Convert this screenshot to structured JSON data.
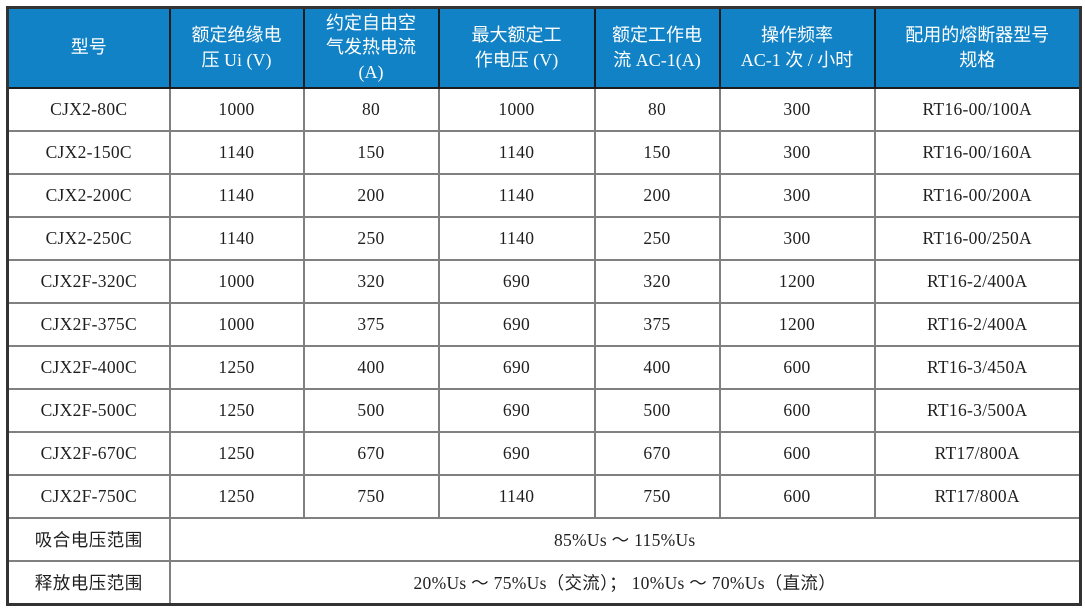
{
  "theme": {
    "header_bg": "#1182c5",
    "header_text": "#ffffff",
    "body_text": "#1f1f1f",
    "border_inner": "#808080",
    "border_outer": "#333333",
    "header_divider": "#1c1c1c",
    "body_bg": "#ffffff"
  },
  "table": {
    "columns": [
      {
        "key": "model",
        "label": "型号"
      },
      {
        "key": "rated-insulation-voltage",
        "label": "额定绝缘电\n压 Ui (V)"
      },
      {
        "key": "free-air-thermal-current",
        "label": "约定自由空\n气发热电流\n(A)"
      },
      {
        "key": "max-rated-working-voltage",
        "label": "最大额定工\n作电压 (V)"
      },
      {
        "key": "rated-working-current-ac1",
        "label": "额定工作电\n流 AC-1(A)"
      },
      {
        "key": "operating-frequency",
        "label": "操作频率\nAC-1 次 / 小时"
      },
      {
        "key": "fuse-spec",
        "label": "配用的熔断器型号\n规格"
      }
    ],
    "rows": [
      [
        "CJX2-80C",
        "1000",
        "80",
        "1000",
        "80",
        "300",
        "RT16-00/100A"
      ],
      [
        "CJX2-150C",
        "1140",
        "150",
        "1140",
        "150",
        "300",
        "RT16-00/160A"
      ],
      [
        "CJX2-200C",
        "1140",
        "200",
        "1140",
        "200",
        "300",
        "RT16-00/200A"
      ],
      [
        "CJX2-250C",
        "1140",
        "250",
        "1140",
        "250",
        "300",
        "RT16-00/250A"
      ],
      [
        "CJX2F-320C",
        "1000",
        "320",
        "690",
        "320",
        "1200",
        "RT16-2/400A"
      ],
      [
        "CJX2F-375C",
        "1000",
        "375",
        "690",
        "375",
        "1200",
        "RT16-2/400A"
      ],
      [
        "CJX2F-400C",
        "1250",
        "400",
        "690",
        "400",
        "600",
        "RT16-3/450A"
      ],
      [
        "CJX2F-500C",
        "1250",
        "500",
        "690",
        "500",
        "600",
        "RT16-3/500A"
      ],
      [
        "CJX2F-670C",
        "1250",
        "670",
        "690",
        "670",
        "600",
        "RT17/800A"
      ],
      [
        "CJX2F-750C",
        "1250",
        "750",
        "1140",
        "750",
        "600",
        "RT17/800A"
      ]
    ],
    "footer_rows": [
      {
        "label": "吸合电压范围",
        "value": "85%Us ～ 115%Us"
      },
      {
        "label": "释放电压范围",
        "value": "20%Us ～ 75%Us（交流）； 10%Us ～ 70%Us（直流）"
      }
    ]
  }
}
